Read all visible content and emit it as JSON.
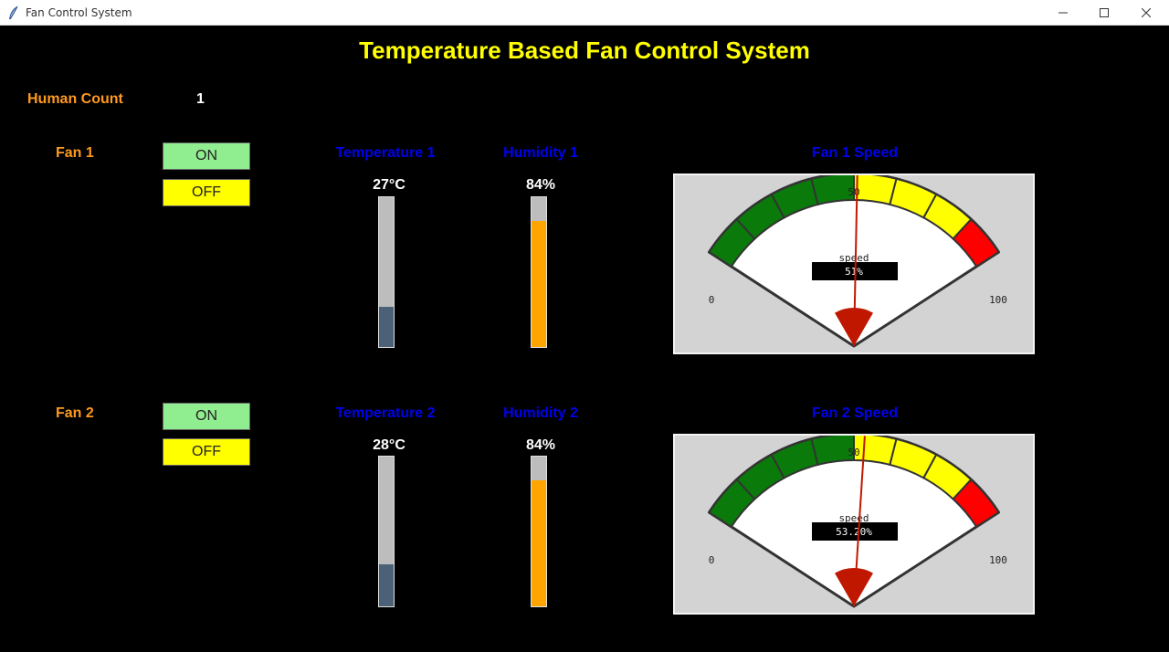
{
  "window": {
    "title": "Fan Control System"
  },
  "main_title": "Temperature Based Fan Control System",
  "human_count": {
    "label": "Human Count",
    "value": "1"
  },
  "fans": [
    {
      "label": "Fan 1",
      "on_label": "ON",
      "off_label": "OFF",
      "temperature": {
        "label": "Temperature 1",
        "value_text": "27°C",
        "fill_fraction": 0.27
      },
      "humidity": {
        "label": "Humidity 1",
        "value_text": "84%",
        "fill_fraction": 0.84
      },
      "speed": {
        "label": "Fan 1 Speed",
        "caption": "speed",
        "value_text": "51%",
        "value": 51,
        "min_label": "0",
        "mid_label": "50",
        "max_label": "100"
      }
    },
    {
      "label": "Fan 2",
      "on_label": "ON",
      "off_label": "OFF",
      "temperature": {
        "label": "Temperature 2",
        "value_text": "28°C",
        "fill_fraction": 0.28
      },
      "humidity": {
        "label": "Humidity 2",
        "value_text": "84%",
        "fill_fraction": 0.84
      },
      "speed": {
        "label": "Fan 2 Speed",
        "caption": "speed",
        "value_text": "53.20%",
        "value": 53.2,
        "min_label": "0",
        "mid_label": "50",
        "max_label": "100"
      }
    }
  ],
  "colors": {
    "title": "#ffff00",
    "label_orange": "#ff9a1f",
    "label_blue": "#0000ee",
    "on_button": "#90ee90",
    "off_button": "#ffff00",
    "temperature_fill": "#4a6178",
    "humidity_fill": "#ffa500",
    "gauge_green": "#0a7a0a",
    "gauge_yellow": "#ffff00",
    "gauge_red": "#ff0000",
    "needle": "#c01800"
  }
}
